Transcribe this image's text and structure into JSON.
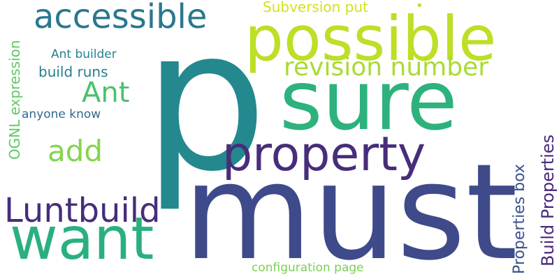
{
  "background": "#ffffff",
  "words": [
    {
      "text": "p",
      "color": "#23898e",
      "orientation": "horizontal"
    },
    {
      "text": "must",
      "color": "#3e4a89",
      "orientation": "horizontal"
    },
    {
      "text": "sure",
      "color": "#2db27d",
      "orientation": "horizontal"
    },
    {
      "text": "possible",
      "color": "#bddf26",
      "orientation": "horizontal"
    },
    {
      "text": "want",
      "color": "#2ab07f",
      "orientation": "horizontal"
    },
    {
      "text": "property",
      "color": "#472d7b",
      "orientation": "horizontal"
    },
    {
      "text": "Luntbuild",
      "color": "#472d7b",
      "orientation": "horizontal"
    },
    {
      "text": "accessible",
      "color": "#2a788e",
      "orientation": "horizontal"
    },
    {
      "text": "revision number",
      "color": "#a8db34",
      "orientation": "horizontal"
    },
    {
      "text": "Ant",
      "color": "#4ac16d",
      "orientation": "horizontal"
    },
    {
      "text": "add",
      "color": "#84d44b",
      "orientation": "horizontal"
    },
    {
      "text": "Build Properties",
      "color": "#482878",
      "orientation": "vertical"
    },
    {
      "text": "Properties box",
      "color": "#3b528b",
      "orientation": "vertical"
    },
    {
      "text": "OGNL expression",
      "color": "#5ec962",
      "orientation": "vertical"
    },
    {
      "text": "build runs",
      "color": "#277f8e",
      "orientation": "horizontal"
    },
    {
      "text": "Subversion put",
      "color": "#d2e21b",
      "orientation": "horizontal"
    },
    {
      "text": "Ant builder",
      "color": "#26828e",
      "orientation": "horizontal"
    },
    {
      "text": "anyone know",
      "color": "#31688e",
      "orientation": "horizontal"
    },
    {
      "text": "configuration page",
      "color": "#7ad151",
      "orientation": "horizontal"
    },
    {
      "text": "•",
      "color": "#bddf26",
      "orientation": "horizontal"
    }
  ]
}
